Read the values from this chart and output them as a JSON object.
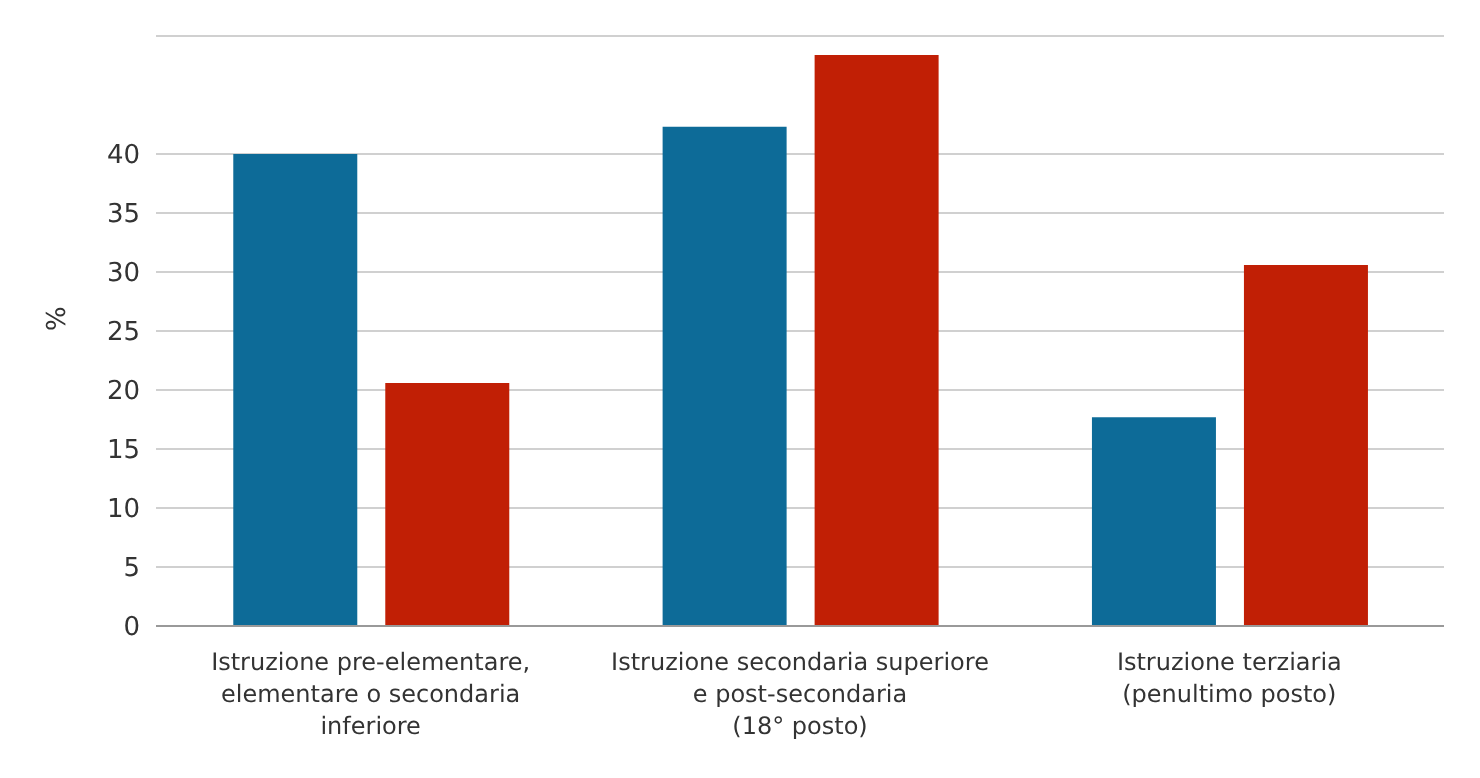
{
  "chart_data": {
    "type": "bar",
    "ylabel": "%",
    "categories": [
      "Istruzione pre-elementare,\nelementare o secondaria\ninferiore",
      "Istruzione secondaria superiore\ne post-secondaria\n(18° posto)",
      "Istruzione terziaria\n(penultimo posto)"
    ],
    "series": [
      {
        "color": "#0d6b98",
        "values": [
          40,
          42.3,
          17.7
        ]
      },
      {
        "color": "#c11f05",
        "values": [
          20.6,
          48.4,
          30.6
        ]
      }
    ],
    "ylim": [
      0,
      50
    ],
    "yticks": [
      0,
      5,
      10,
      15,
      20,
      25,
      30,
      35,
      40
    ],
    "grid": "y"
  }
}
